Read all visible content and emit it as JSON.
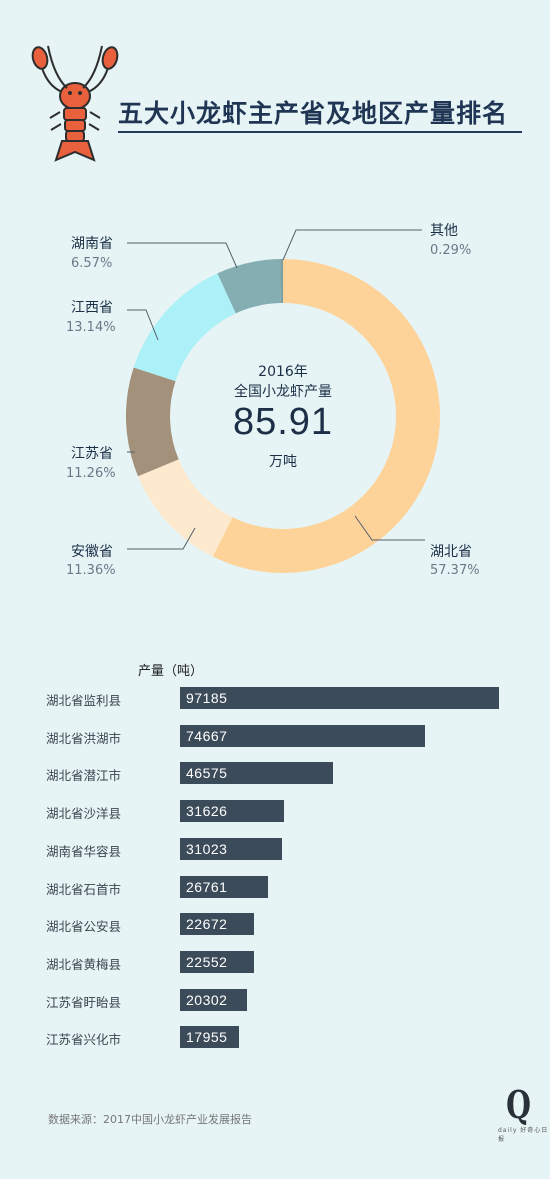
{
  "title": "五大小龙虾主产省及地区产量排名",
  "donut": {
    "center_year": "2016年",
    "center_sub": "全国小龙虾产量",
    "center_value": "85.91",
    "center_unit": "万吨"
  },
  "bar_header": "产量（吨）",
  "source": "数据来源：2017中国小龙虾产业发展报告",
  "logo": {
    "q": "Q",
    "daily": "daily 好奇心日报"
  },
  "colors": {
    "hubei": "#fdd39a",
    "anhui": "#fde9cd",
    "jiangsu": "#a3917b",
    "jiangxi": "#adf1f8",
    "hunan": "#84aeb2",
    "other": "#7aa0a3",
    "bar": "#3c4b59",
    "background": "#e6f4f5"
  },
  "chart_data": [
    {
      "type": "pie",
      "title": "2016年 全国小龙虾产量 85.91 万吨",
      "categories": [
        "湖北省",
        "安徽省",
        "江苏省",
        "江西省",
        "湖南省",
        "其他"
      ],
      "values": [
        57.37,
        11.36,
        11.26,
        13.14,
        6.57,
        0.29
      ],
      "labels": [
        "57.37%",
        "11.36%",
        "11.26%",
        "13.14%",
        "6.57%",
        "0.29%"
      ]
    },
    {
      "type": "bar",
      "orientation": "horizontal",
      "ylabel": "产量（吨）",
      "categories": [
        "湖北省监利县",
        "湖北省洪湖市",
        "湖北省潜江市",
        "湖北省沙洋县",
        "湖南省华容县",
        "湖北省石首市",
        "湖北省公安县",
        "湖北省黄梅县",
        "江苏省盱眙县",
        "江苏省兴化市"
      ],
      "values": [
        97185,
        74667,
        46575,
        31626,
        31023,
        26761,
        22672,
        22552,
        20302,
        17955
      ],
      "labels": [
        "97185",
        "74667",
        "46575",
        "31626",
        "31023",
        "26761",
        "22672",
        "22552",
        "20302",
        "17955"
      ],
      "xlim": [
        0,
        100000
      ]
    }
  ]
}
